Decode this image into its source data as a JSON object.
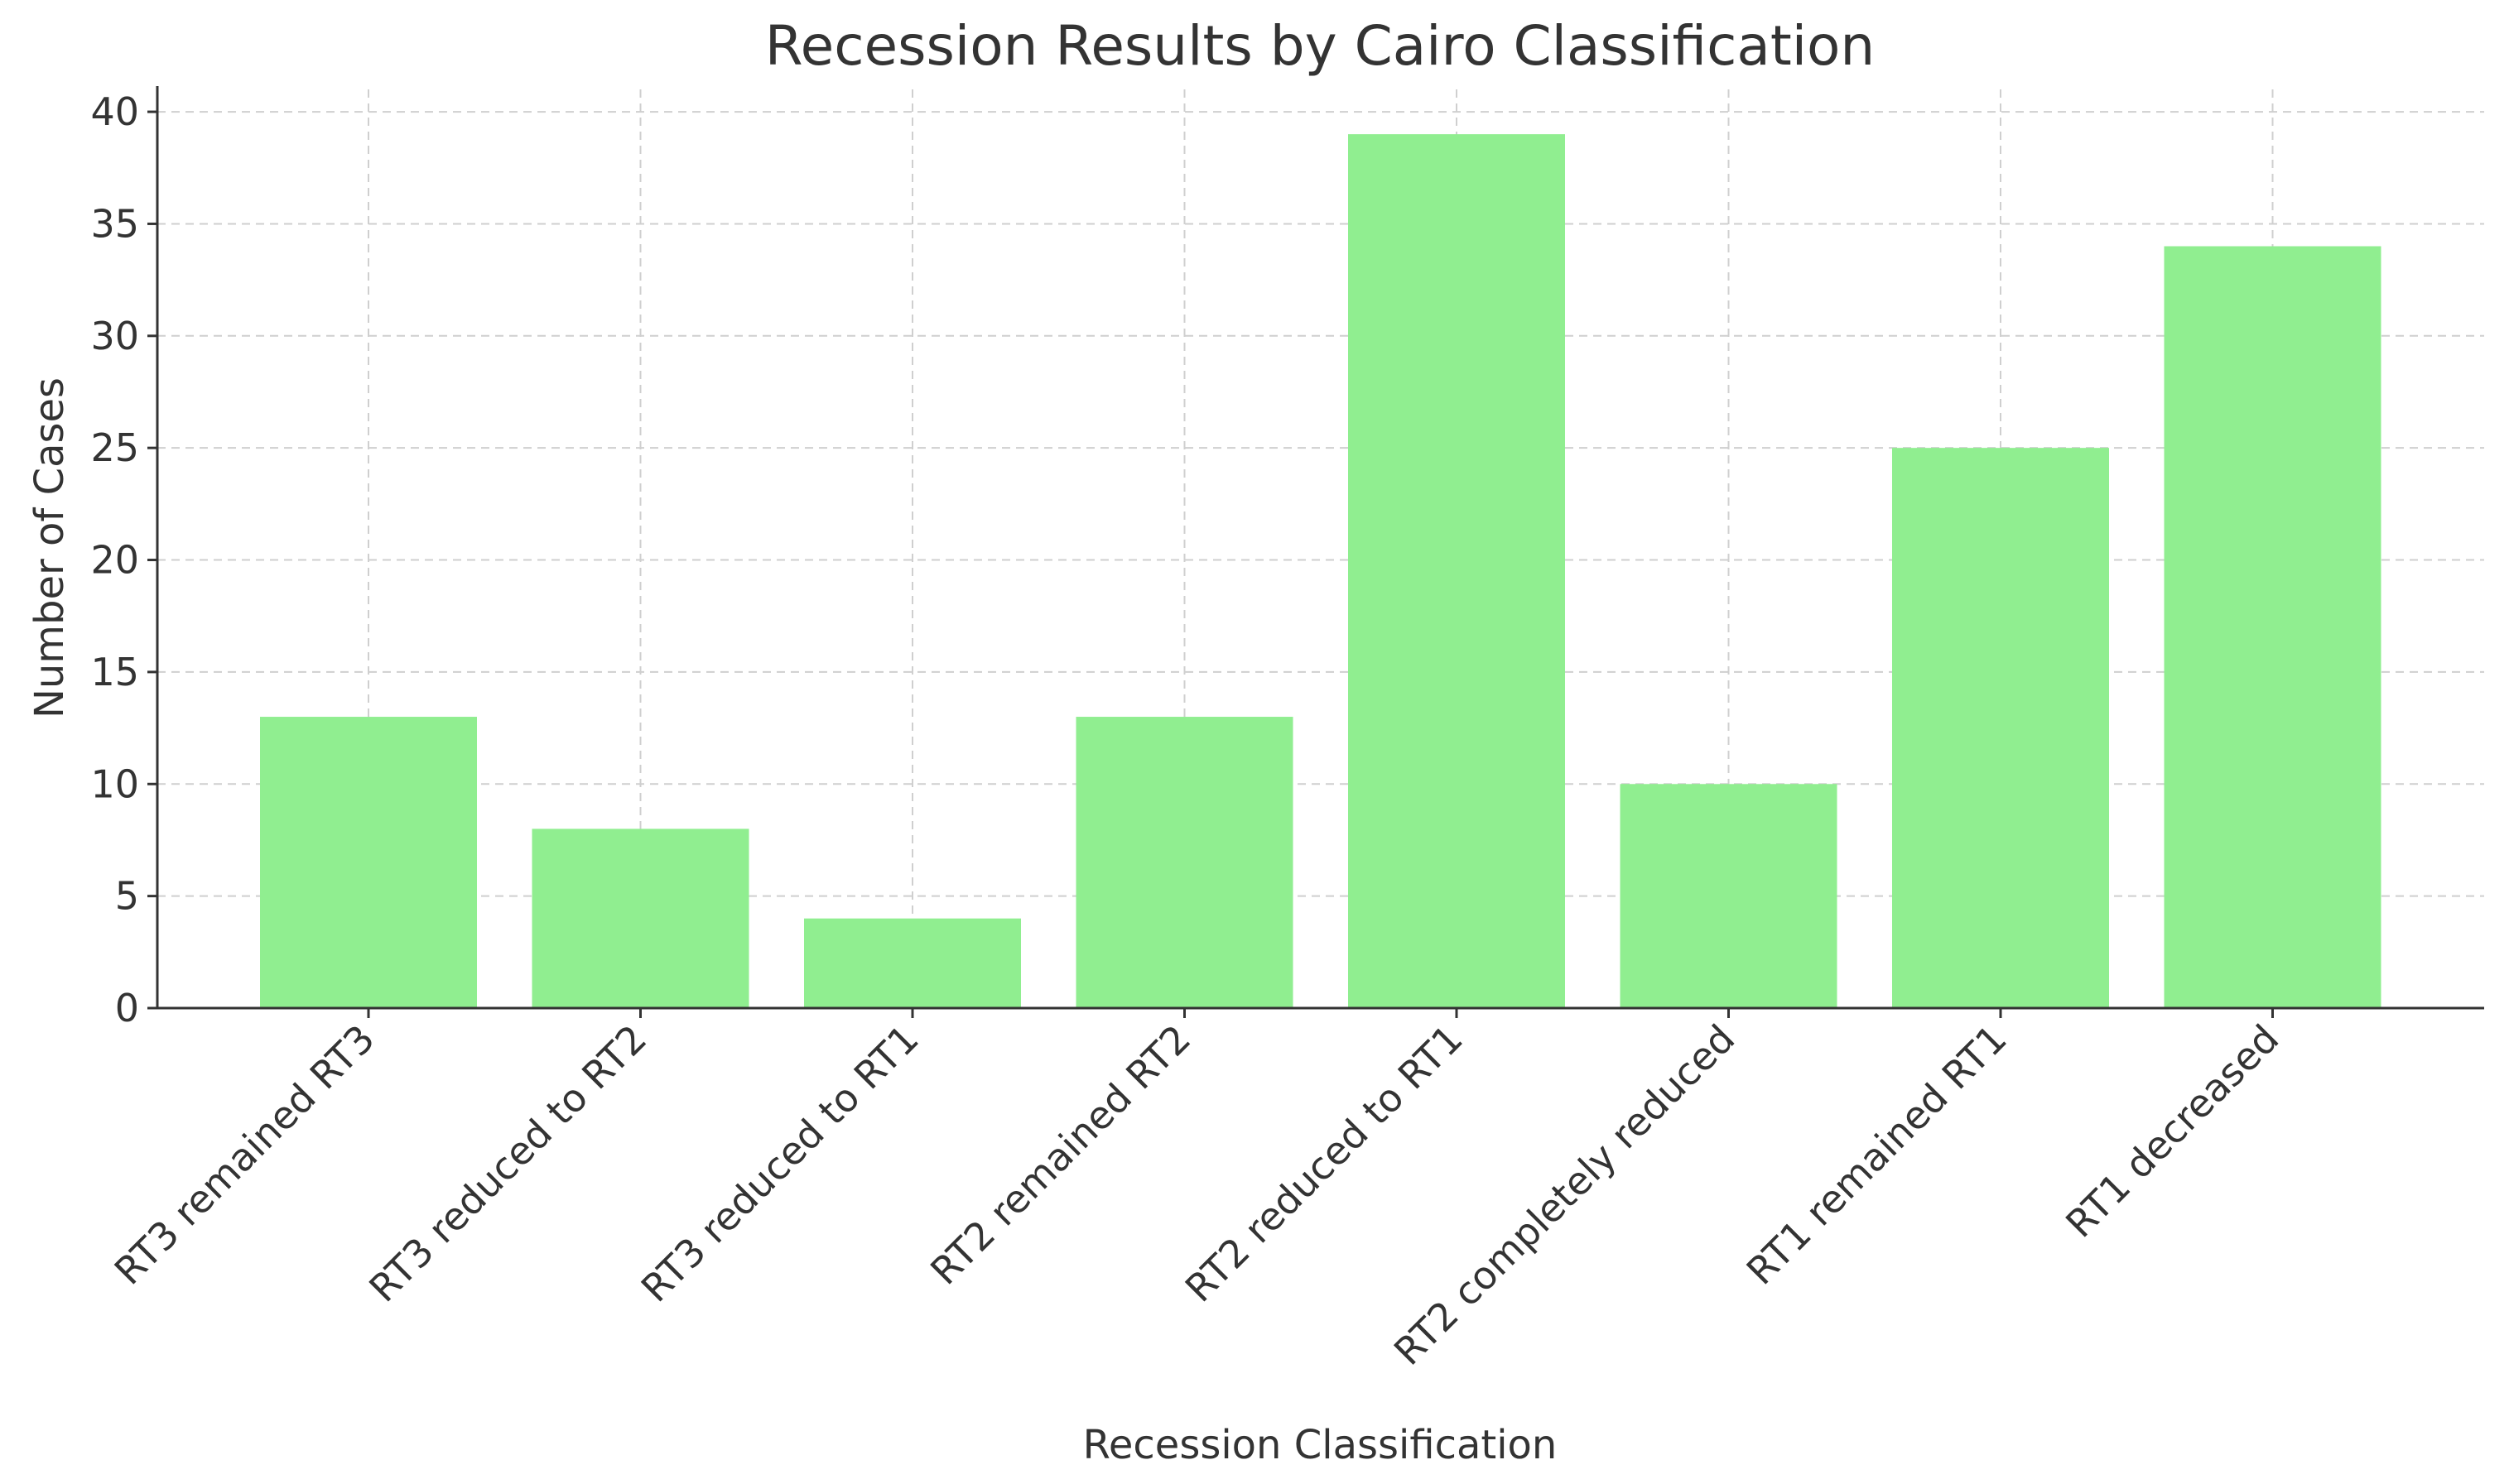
{
  "chart_data": {
    "type": "bar",
    "title": "Recession Results by Cairo Classification",
    "xlabel": "Recession Classification",
    "ylabel": "Number of Cases",
    "categories": [
      "RT3 remained RT3",
      "RT3 reduced to RT2",
      "RT3 reduced to RT1",
      "RT2 remained RT2",
      "RT2 reduced to RT1",
      "RT2 completely reduced",
      "RT1 remained RT1",
      "RT1 decreased"
    ],
    "values": [
      13,
      8,
      4,
      13,
      39,
      10,
      25,
      34
    ],
    "ylim": [
      0,
      41
    ],
    "yticks": [
      0,
      5,
      10,
      15,
      20,
      25,
      30,
      35,
      40
    ],
    "grid": true,
    "bar_color": "#90EE90"
  }
}
